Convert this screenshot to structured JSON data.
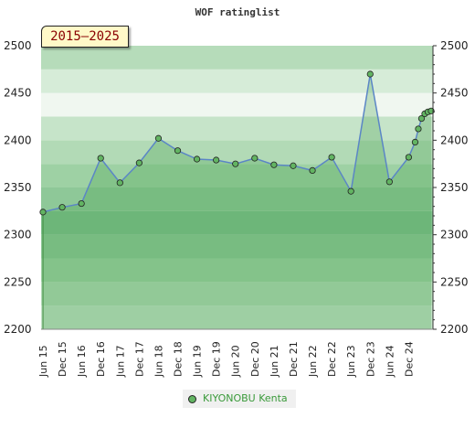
{
  "chart_data": {
    "type": "area",
    "title": "WOF ratinglist",
    "period_label": "2015–2025",
    "ylim": [
      2200,
      2500
    ],
    "yticks": [
      2200,
      2250,
      2300,
      2350,
      2400,
      2450,
      2500
    ],
    "x_tick_labels": [
      "Jun 15",
      "Dec 15",
      "Jun 16",
      "Dec 16",
      "Jun 17",
      "Dec 17",
      "Jun 18",
      "Dec 18",
      "Jun 19",
      "Dec 19",
      "Jun 20",
      "Dec 20",
      "Jun 21",
      "Dec 21",
      "Jun 22",
      "Dec 22",
      "Jun 23",
      "Dec 23",
      "Jun 24",
      "Dec 24"
    ],
    "series": [
      {
        "name": "KIYONOBU Kenta",
        "color": "#62b462",
        "line_color": "#5b86c6",
        "x": [
          "Jun 15",
          "Dec 15",
          "Jun 16",
          "Dec 16",
          "Jun 17",
          "Dec 17",
          "Jun 18",
          "Dec 18",
          "Jun 19",
          "Dec 19",
          "Jun 20",
          "Dec 20",
          "Jun 21",
          "Dec 21",
          "Jun 22",
          "Dec 22",
          "Jun 23",
          "Dec 23",
          "Jun 24",
          "Dec 24",
          "Feb 25",
          "Mar 25",
          "Apr 25",
          "May 25",
          "Jun 25",
          "Jul 25"
        ],
        "values": [
          2324,
          2329,
          2333,
          2381,
          2355,
          2376,
          2402,
          2389,
          2380,
          2379,
          2375,
          2381,
          2374,
          2373,
          2368,
          2382,
          2346,
          2470,
          2356,
          2382,
          2398,
          2412,
          2423,
          2428,
          2430,
          2431
        ]
      }
    ],
    "grid": true,
    "legend_position": "bottom"
  }
}
